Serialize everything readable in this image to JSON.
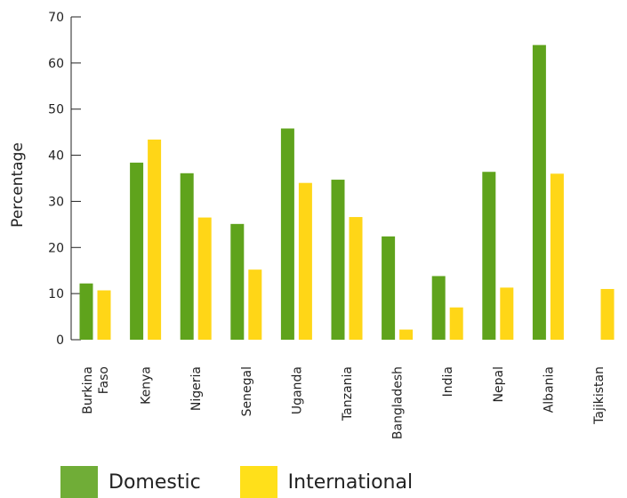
{
  "chart_data": {
    "type": "bar",
    "title": "",
    "xlabel": "",
    "ylabel": "Percentage",
    "ylim": [
      0,
      70
    ],
    "yticks": [
      0,
      10,
      20,
      30,
      40,
      50,
      60,
      70
    ],
    "categories": [
      [
        "Burkina",
        "Faso"
      ],
      [
        "Kenya"
      ],
      [
        "Nigeria"
      ],
      [
        "Senegal"
      ],
      [
        "Uganda"
      ],
      [
        "Tanzania"
      ],
      [
        "Bangladesh"
      ],
      [
        "India"
      ],
      [
        "Nepal"
      ],
      [
        "Albania"
      ],
      [
        "Tajikistan"
      ]
    ],
    "series": [
      {
        "name": "Domestic",
        "color": "#5fa31c",
        "values": [
          12.2,
          38.4,
          36.1,
          25.1,
          45.8,
          34.7,
          22.4,
          13.8,
          36.4,
          63.9,
          null
        ]
      },
      {
        "name": "International",
        "color": "#ffd617",
        "values": [
          10.7,
          43.4,
          26.5,
          15.2,
          34.0,
          26.6,
          2.2,
          7.0,
          11.3,
          36.0,
          11.0
        ]
      }
    ],
    "grid": false,
    "legend": "bottom-left"
  },
  "legend": {
    "items": [
      {
        "label": "Domestic",
        "color": "#70ad37"
      },
      {
        "label": "International",
        "color": "#ffe01a"
      }
    ]
  }
}
